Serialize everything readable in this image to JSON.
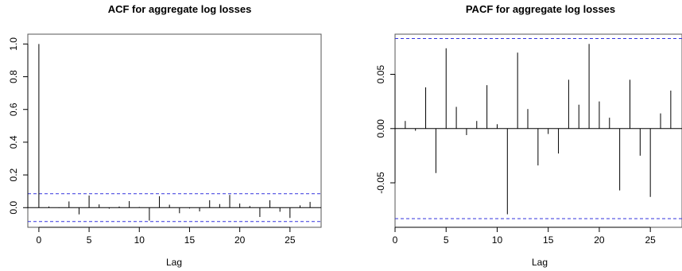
{
  "chart_data": [
    {
      "type": "bar",
      "title": "ACF for aggregate log losses",
      "xlabel": "Lag",
      "ylabel": "",
      "xlim": [
        -1.1,
        28.1
      ],
      "ylim": [
        -0.12,
        1.06
      ],
      "xticks": [
        0,
        5,
        10,
        15,
        20,
        25
      ],
      "xtick_labels": [
        "0",
        "5",
        "10",
        "15",
        "20",
        "25"
      ],
      "yticks": [
        0.0,
        0.2,
        0.4,
        0.6,
        0.8,
        1.0
      ],
      "ytick_labels": [
        "0.0",
        "0.2",
        "0.4",
        "0.6",
        "0.8",
        "1.0"
      ],
      "confidence_bound": 0.085,
      "grid": false,
      "x": [
        0,
        1,
        2,
        3,
        4,
        5,
        6,
        7,
        8,
        9,
        10,
        11,
        12,
        13,
        14,
        15,
        16,
        17,
        18,
        19,
        20,
        21,
        22,
        23,
        24,
        25,
        26,
        27
      ],
      "values": [
        1.0,
        0.007,
        -0.002,
        0.038,
        -0.041,
        0.074,
        0.02,
        -0.006,
        0.007,
        0.04,
        0.004,
        -0.079,
        0.07,
        0.018,
        -0.034,
        -0.005,
        -0.023,
        0.045,
        0.022,
        0.078,
        0.025,
        0.01,
        -0.057,
        0.045,
        -0.025,
        -0.063,
        0.014,
        0.035
      ],
      "colors": {
        "bars": "#000000",
        "bound": "#3333dd",
        "zero": "#000000"
      }
    },
    {
      "type": "bar",
      "title": "PACF for aggregate log losses",
      "xlabel": "Lag",
      "ylabel": "",
      "xlim": [
        0,
        28.1
      ],
      "ylim": [
        -0.091,
        0.087
      ],
      "xticks": [
        0,
        5,
        10,
        15,
        20,
        25
      ],
      "xtick_labels": [
        "0",
        "5",
        "10",
        "15",
        "20",
        "25"
      ],
      "yticks": [
        -0.05,
        0.0,
        0.05
      ],
      "ytick_labels": [
        "-0.05",
        "0.00",
        "0.05"
      ],
      "confidence_bound": 0.083,
      "grid": false,
      "x": [
        1,
        2,
        3,
        4,
        5,
        6,
        7,
        8,
        9,
        10,
        11,
        12,
        13,
        14,
        15,
        16,
        17,
        18,
        19,
        20,
        21,
        22,
        23,
        24,
        25,
        26,
        27
      ],
      "values": [
        0.007,
        -0.002,
        0.038,
        -0.041,
        0.074,
        0.02,
        -0.006,
        0.007,
        0.04,
        0.004,
        -0.079,
        0.07,
        0.018,
        -0.034,
        -0.005,
        -0.023,
        0.045,
        0.022,
        0.078,
        0.025,
        0.01,
        -0.057,
        0.045,
        -0.025,
        -0.063,
        0.014,
        0.035
      ],
      "colors": {
        "bars": "#000000",
        "bound": "#3333dd",
        "zero": "#000000"
      }
    }
  ]
}
